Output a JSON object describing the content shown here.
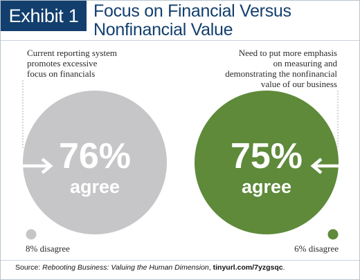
{
  "header": {
    "badge": "Exhibit 1",
    "title": "Focus on Financial Versus Nonfinancial Value"
  },
  "source": {
    "prefix": "Source: ",
    "publication": "Rebooting Business: Valuing the Human Dimension",
    "separator": ", ",
    "link": "tinyurl.com/7yzgsqc",
    "suffix": "."
  },
  "colors": {
    "navy": "#123f6e",
    "gray_circle": "#c6c6c8",
    "green_circle": "#5e8a3a",
    "text_dark": "#2a2a2a"
  },
  "chart_data": {
    "type": "pie",
    "title": "Focus on Financial Versus Nonfinancial Value",
    "series": [
      {
        "statement": [
          "Current reporting system",
          "promotes excessive",
          "focus on financials"
        ],
        "agree_percent": 76,
        "agree_label": "76%",
        "agree_word": "agree",
        "disagree_percent": 8,
        "disagree_label": "8% disagree",
        "color": "#c6c6c8",
        "arrow_direction": "right"
      },
      {
        "statement": [
          "Need to put more emphasis",
          "on measuring and",
          "demonstrating the nonfinancial",
          "value of our business"
        ],
        "agree_percent": 75,
        "agree_label": "75%",
        "agree_word": "agree",
        "disagree_percent": 6,
        "disagree_label": "6% disagree",
        "color": "#5e8a3a",
        "arrow_direction": "left"
      }
    ]
  }
}
